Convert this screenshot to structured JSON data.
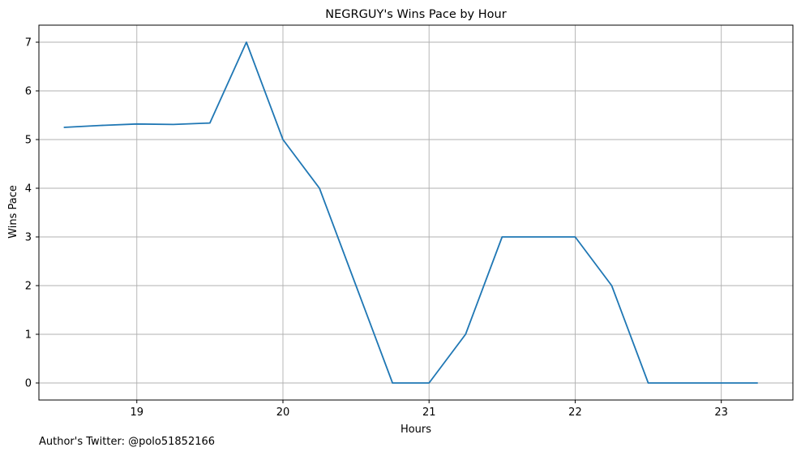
{
  "chart_data": {
    "type": "line",
    "title": "NEGRGUY's Wins Pace by Hour",
    "xlabel": "Hours",
    "ylabel": "Wins Pace",
    "xlim": [
      18.33,
      23.49
    ],
    "ylim": [
      -0.35,
      7.35
    ],
    "x_ticks": [
      19,
      20,
      21,
      22,
      23
    ],
    "y_ticks": [
      0,
      1,
      2,
      3,
      4,
      5,
      6,
      7
    ],
    "grid": true,
    "line_color": "#1f77b4",
    "series": [
      {
        "x": [
          18.5,
          18.75,
          19.0,
          19.25,
          19.5,
          19.75,
          20.0,
          20.25,
          20.5,
          20.75,
          21.0,
          21.25,
          21.5,
          21.75,
          22.0,
          22.25,
          22.5,
          22.75,
          23.0,
          23.25
        ],
        "values": [
          5.25,
          5.29,
          5.32,
          5.31,
          5.34,
          7.0,
          5.0,
          4.0,
          2.0,
          0.0,
          0.0,
          1.0,
          3.0,
          3.0,
          3.0,
          2.0,
          0.0,
          0.0,
          0.0,
          0.0
        ]
      }
    ]
  },
  "footer": {
    "author_text": "Author's Twitter: @polo51852166"
  }
}
